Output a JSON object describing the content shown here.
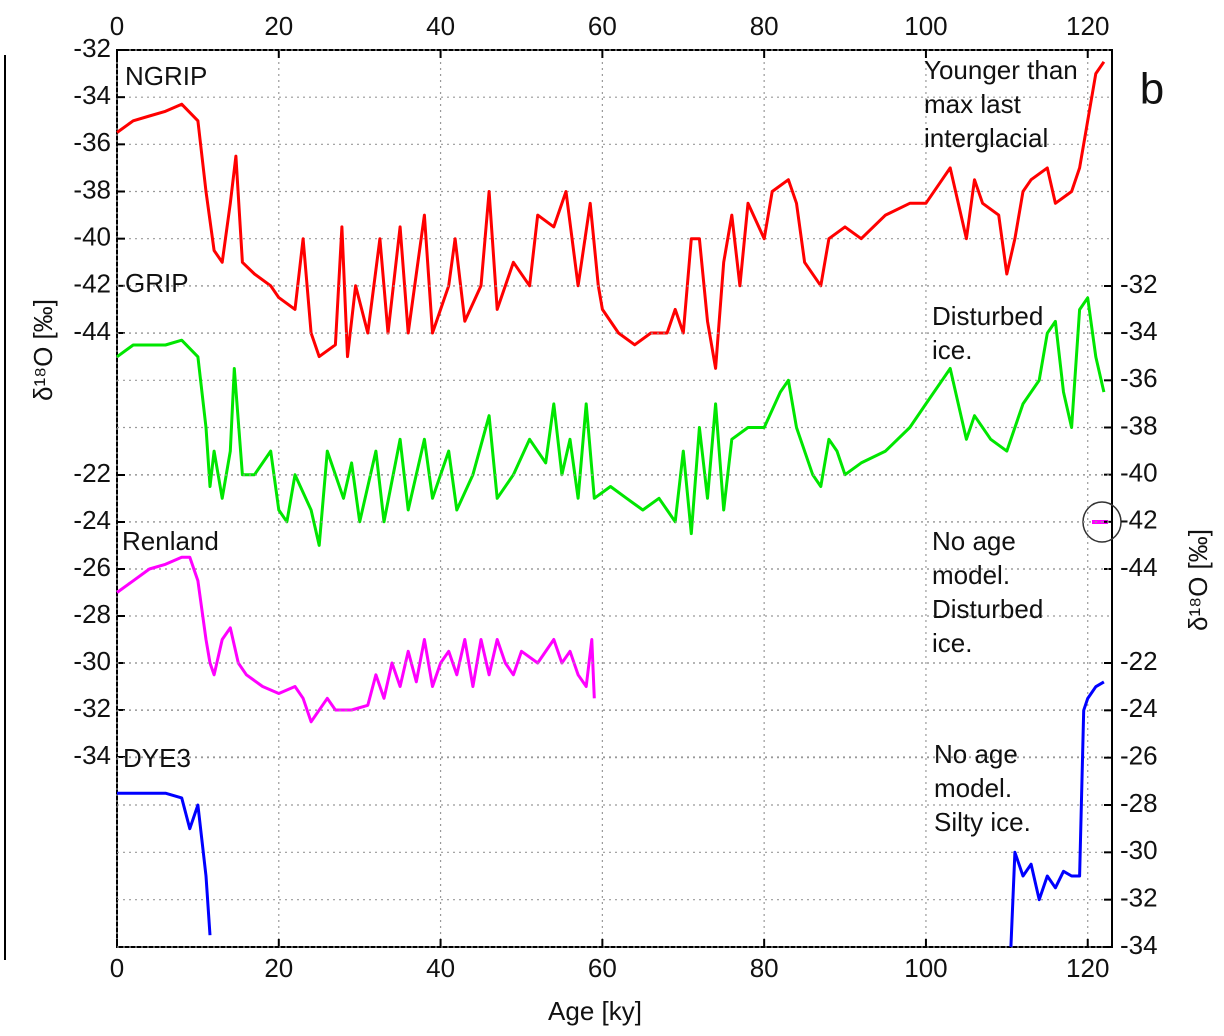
{
  "chart_data": {
    "type": "line",
    "panel_label": "b",
    "xlabel": "Age [ky]",
    "ylabel": "δ¹⁸O [‰]",
    "xlim": [
      0,
      123
    ],
    "xticks": [
      0,
      20,
      40,
      60,
      80,
      100,
      120
    ],
    "grid": true,
    "panels": [
      {
        "name": "NGRIP",
        "color": "#ff0000",
        "side": "left",
        "ylim": [
          -44,
          -32
        ],
        "yticks": [
          -32,
          -34,
          -36,
          -38,
          -40,
          -42,
          -44
        ],
        "x": [
          0,
          2,
          4,
          6,
          8,
          10,
          11,
          12,
          13,
          14,
          14.7,
          15.5,
          17,
          19,
          20,
          22,
          23,
          24,
          25,
          27,
          27.8,
          28.5,
          29.5,
          31,
          32.5,
          33.5,
          35,
          36,
          38,
          39,
          40,
          41,
          41.8,
          43,
          45,
          46,
          47,
          49,
          51,
          52,
          54,
          55.5,
          57,
          58.5,
          59.5,
          60,
          62,
          64,
          66,
          68,
          69,
          70,
          71,
          72,
          73,
          74,
          75,
          76,
          77,
          78,
          80,
          81,
          83,
          84,
          85,
          87,
          88,
          90,
          92,
          95,
          98,
          100,
          102,
          103,
          104,
          105,
          106,
          107,
          109,
          110,
          111,
          112,
          113,
          115,
          116,
          118,
          119,
          120,
          121,
          122
        ],
        "values": [
          -35.5,
          -35,
          -34.8,
          -34.6,
          -34.3,
          -35,
          -38,
          -40.5,
          -41,
          -38.5,
          -36.5,
          -41,
          -41.5,
          -42,
          -42.5,
          -43,
          -40,
          -44,
          -45,
          -44.5,
          -39.5,
          -45,
          -42,
          -44,
          -40,
          -44,
          -39.5,
          -44,
          -39,
          -44,
          -43,
          -42,
          -40,
          -43.5,
          -42,
          -38,
          -43,
          -41,
          -42,
          -39,
          -39.5,
          -38,
          -42,
          -38.5,
          -42,
          -43,
          -44,
          -44.5,
          -44,
          -44,
          -43,
          -44,
          -40,
          -40,
          -43.5,
          -45.5,
          -41,
          -39,
          -42,
          -38.5,
          -40,
          -38,
          -37.5,
          -38.5,
          -41,
          -42,
          -40,
          -39.5,
          -40,
          -39,
          -38.5,
          -38.5,
          -37.5,
          -37,
          -38.5,
          -40,
          -37.5,
          -38.5,
          -39,
          -41.5,
          -40,
          -38,
          -37.5,
          -37,
          -38.5,
          -38,
          -37,
          -35,
          -33,
          -32.5
        ]
      },
      {
        "name": "GRIP",
        "color": "#00e600",
        "side": "right",
        "ylim": [
          -44,
          -32
        ],
        "yticks": [
          -32,
          -34,
          -36,
          -38,
          -40,
          -42,
          -44
        ],
        "x": [
          0,
          2,
          4,
          6,
          8,
          10,
          11,
          11.5,
          12,
          13,
          14,
          14.5,
          15.5,
          17,
          19,
          20,
          21,
          22,
          24,
          25,
          26,
          28,
          29,
          30,
          32,
          33,
          35,
          36,
          38,
          39,
          41,
          42,
          44,
          46,
          47,
          49,
          51,
          53,
          54,
          55,
          56,
          57,
          58,
          59,
          61,
          63,
          65,
          67,
          68,
          69,
          70,
          71,
          72,
          73,
          74,
          75,
          76,
          78,
          80,
          82,
          83,
          84,
          86,
          87,
          88,
          89,
          90,
          92,
          95,
          98,
          100,
          102,
          103,
          104,
          105,
          106,
          108,
          110,
          111,
          112,
          114,
          115,
          116,
          117,
          118,
          119,
          120,
          121,
          122
        ],
        "values": [
          -35,
          -34.5,
          -34.5,
          -34.5,
          -34.3,
          -35,
          -38,
          -40.5,
          -39,
          -41,
          -39,
          -35.5,
          -40,
          -40,
          -39,
          -41.5,
          -42,
          -40,
          -41.5,
          -43,
          -39,
          -41,
          -39.5,
          -42,
          -39,
          -42,
          -38.5,
          -41.5,
          -38.5,
          -41,
          -39,
          -41.5,
          -40,
          -37.5,
          -41,
          -40,
          -38.5,
          -39.5,
          -37,
          -40,
          -38.5,
          -41,
          -37,
          -41,
          -40.5,
          -41,
          -41.5,
          -41,
          -41.5,
          -42,
          -39,
          -42.5,
          -38,
          -41,
          -37,
          -41.5,
          -38.5,
          -38,
          -38,
          -36.5,
          -36,
          -38,
          -40,
          -40.5,
          -38.5,
          -39,
          -40,
          -39.5,
          -39,
          -38,
          -37,
          -36,
          -35.5,
          -37,
          -38.5,
          -37.5,
          -38.5,
          -39,
          -38,
          -37,
          -36,
          -34,
          -33.5,
          -36.5,
          -38,
          -33,
          -32.5,
          -35,
          -36.5
        ]
      },
      {
        "name": "Renland",
        "color": "#ff00ff",
        "side": "left",
        "ylim": [
          -34,
          -22
        ],
        "yticks": [
          -22,
          -24,
          -26,
          -28,
          -30,
          -32,
          -34
        ],
        "x": [
          0,
          2,
          4,
          6,
          8,
          9,
          10,
          11,
          11.5,
          12,
          13,
          14,
          15,
          16,
          18,
          20,
          22,
          23,
          24,
          26,
          27,
          29,
          31,
          32,
          33,
          34,
          35,
          36,
          37,
          38,
          39,
          40,
          41,
          42,
          43,
          44,
          45,
          46,
          47,
          48,
          49,
          50,
          52,
          54,
          55,
          56,
          57,
          58,
          58.7,
          59
        ],
        "values": [
          -27,
          -26.5,
          -26,
          -25.8,
          -25.5,
          -25.5,
          -26.5,
          -29,
          -30,
          -30.5,
          -29,
          -28.5,
          -30,
          -30.5,
          -31,
          -31.3,
          -31,
          -31.5,
          -32.5,
          -31.5,
          -32,
          -32,
          -31.8,
          -30.5,
          -31.5,
          -30,
          -31,
          -29.5,
          -30.8,
          -29,
          -31,
          -30,
          -29.5,
          -30.5,
          -29,
          -31,
          -29,
          -30.5,
          -29,
          -30,
          -30.5,
          -29.5,
          -30,
          -29,
          -30,
          -29.5,
          -30.5,
          -31,
          -29,
          -31.5
        ]
      },
      {
        "name": "DYE3",
        "color": "#0000ff",
        "side": "right",
        "ylim": [
          -34,
          -22
        ],
        "yticks": [
          -22,
          -24,
          -26,
          -28,
          -30,
          -32,
          -34
        ],
        "x": [
          0,
          2,
          4,
          6,
          8,
          9,
          10,
          11,
          11.5,
          60,
          110.5,
          111,
          112,
          113,
          114,
          115,
          116,
          117,
          118,
          119,
          119.5,
          120,
          121,
          122
        ],
        "values": [
          -27.5,
          -27.5,
          -27.5,
          -27.5,
          -27.7,
          -29,
          -28,
          -31,
          -33.5,
          null,
          -34,
          -30,
          -31,
          -30.5,
          -32,
          -31,
          -31.5,
          -30.8,
          -31,
          -31,
          -24,
          -23.5,
          -23,
          -22.8
        ]
      }
    ],
    "annotations": [
      [
        "Younger than",
        "max last",
        "interglacial"
      ],
      [
        "Disturbed",
        "ice."
      ],
      [
        "No age",
        "model.",
        "Disturbed",
        "ice."
      ],
      [
        "No age",
        "model.",
        "Silty ice."
      ]
    ]
  }
}
